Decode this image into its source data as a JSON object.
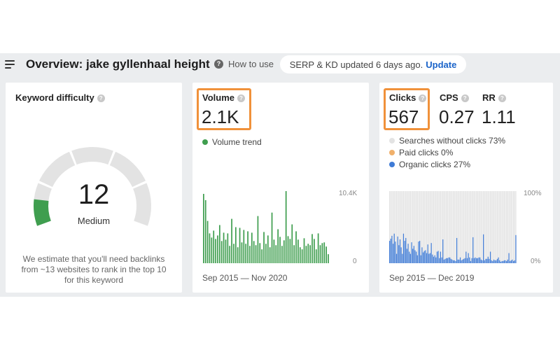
{
  "header": {
    "title": "Overview: jake gyllenhaal height",
    "how_to_use": "How to use",
    "help_icon_glyph": "?",
    "serp_status": "SERP & KD updated 6 days ago.",
    "update_label": "Update"
  },
  "keyword_difficulty": {
    "label": "Keyword difficulty",
    "value": "12",
    "category": "Medium",
    "fraction": 0.12,
    "description": "We estimate that you'll need backlinks from ~13 websites to rank in the top 10 for this keyword",
    "gauge_color": "#3f9e4f",
    "track_color": "#e3e3e3"
  },
  "volume": {
    "label": "Volume",
    "value": "2.1K",
    "legend": "Volume trend",
    "color": "#3f9e4f",
    "y_max_label": "10.4K",
    "y_min_label": "0",
    "date_range": "Sep 2015 — Nov 2020"
  },
  "clicks": {
    "label": "Clicks",
    "value": "567",
    "cps_label": "CPS",
    "cps_value": "0.27",
    "rr_label": "RR",
    "rr_value": "1.11",
    "legend": [
      {
        "label": "Searches without clicks 73%",
        "color": "#e3e3e3"
      },
      {
        "label": "Paid clicks 0%",
        "color": "#f0b06b"
      },
      {
        "label": "Organic clicks 27%",
        "color": "#3f7bd6"
      }
    ],
    "y_max_label": "100%",
    "y_min_label": "0%",
    "date_range": "Sep 2015 — Dec 2019"
  },
  "chart_data": [
    {
      "type": "bar",
      "title": "Volume trend",
      "ylim": [
        0,
        10400
      ],
      "values": [
        10000,
        9100,
        6100,
        4300,
        3700,
        4700,
        3500,
        4000,
        5500,
        3200,
        4400,
        3400,
        4300,
        2500,
        6400,
        2800,
        5200,
        2300,
        5100,
        3000,
        4800,
        2800,
        4600,
        2500,
        4400,
        3200,
        2600,
        6800,
        2900,
        2000,
        4500,
        2800,
        4000,
        2300,
        7300,
        3400,
        2600,
        4900,
        3800,
        2500,
        3300,
        10600,
        3900,
        3500,
        5600,
        2600,
        4600,
        3400,
        2300,
        2000,
        3600,
        2500,
        2800,
        2600,
        4200,
        3500,
        2000,
        4300,
        2600,
        2900,
        3000,
        2400,
        1300
      ]
    },
    {
      "type": "bar",
      "title": "Clicks",
      "ylim": [
        0,
        100
      ],
      "values": [
        31,
        34,
        38,
        27,
        41,
        30,
        13,
        37,
        25,
        33,
        22,
        13,
        41,
        31,
        35,
        20,
        27,
        16,
        13,
        29,
        20,
        24,
        18,
        16,
        11,
        30,
        31,
        11,
        22,
        15,
        17,
        18,
        14,
        26,
        13,
        14,
        28,
        12,
        9,
        11,
        8,
        16,
        17,
        7,
        16,
        8,
        33,
        5,
        6,
        7,
        7,
        8,
        8,
        6,
        5,
        4,
        4,
        3,
        35,
        5,
        5,
        8,
        4,
        5,
        6,
        7,
        16,
        7,
        14,
        8,
        3,
        7,
        36,
        7,
        8,
        7,
        7,
        8,
        8,
        5,
        4,
        40,
        4,
        6,
        6,
        9,
        6,
        16,
        4,
        3,
        5,
        4,
        4,
        6,
        8,
        4,
        2,
        3,
        3,
        4,
        4,
        3,
        5,
        14,
        3,
        4,
        5,
        3,
        4,
        39
      ]
    }
  ]
}
